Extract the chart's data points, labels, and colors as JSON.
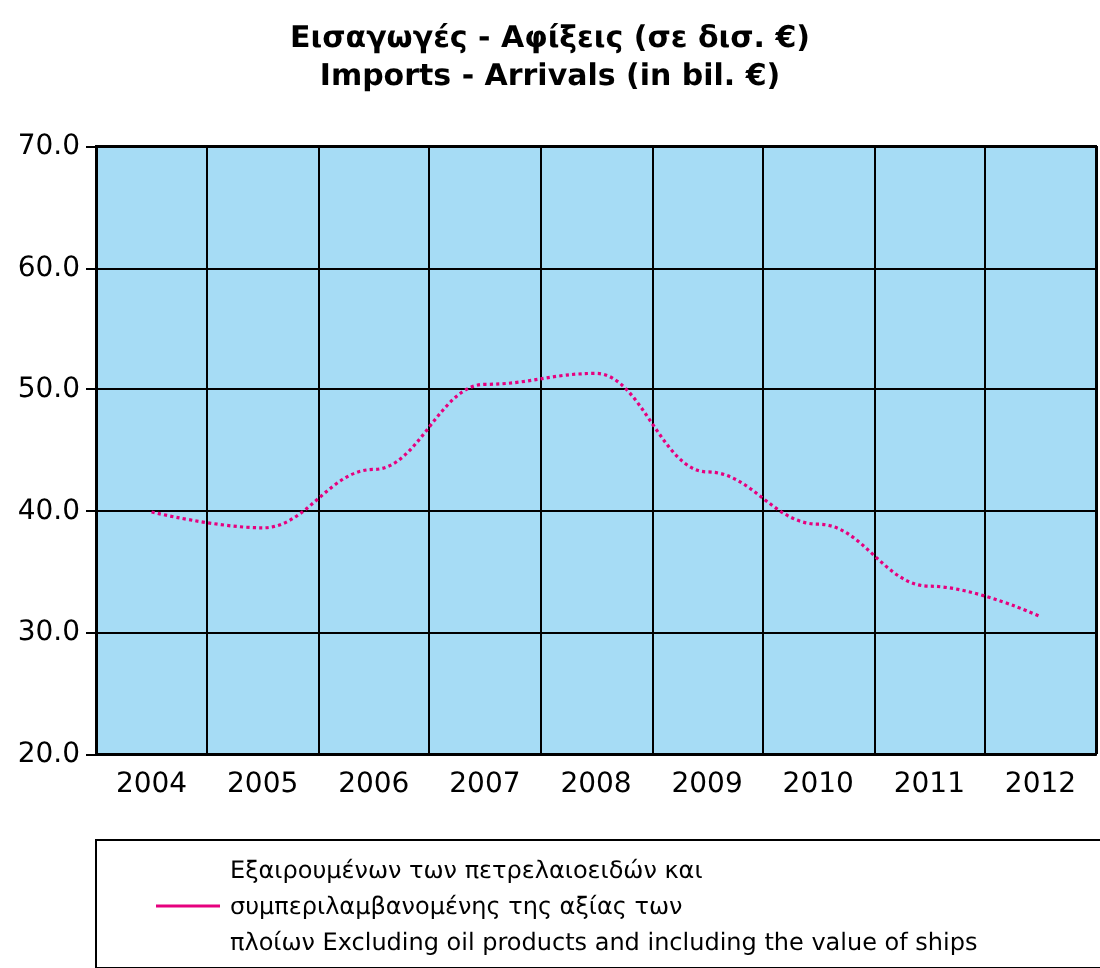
{
  "chart_data": {
    "type": "line",
    "title": "Εισαγωγές - Αφίξεις (σε δισ. €)",
    "subtitle": "Imports - Arrivals (in bil. €)",
    "categories": [
      "2004",
      "2005",
      "2006",
      "2007",
      "2008",
      "2009",
      "2010",
      "2011",
      "2012"
    ],
    "series": [
      {
        "name": "Εξαιρουμένων των πετρελαιοειδών και συμπεριλαμβανομένης της αξίας των πλοίων Excluding oil products and including the value of ships",
        "color": "#e6007e",
        "values": [
          39.9,
          38.6,
          43.4,
          50.4,
          51.3,
          43.2,
          38.9,
          33.8,
          31.3
        ]
      }
    ],
    "ylim": [
      20,
      70
    ],
    "yticks": [
      {
        "value": 20,
        "label": "20.0"
      },
      {
        "value": 30,
        "label": "30.0"
      },
      {
        "value": 40,
        "label": "40.0"
      },
      {
        "value": 50,
        "label": "50.0"
      },
      {
        "value": 60,
        "label": "60.0"
      },
      {
        "value": 70,
        "label": "70.0"
      }
    ],
    "grid": true,
    "legend": "bottom",
    "marker": "none",
    "line_style": "dotted"
  }
}
